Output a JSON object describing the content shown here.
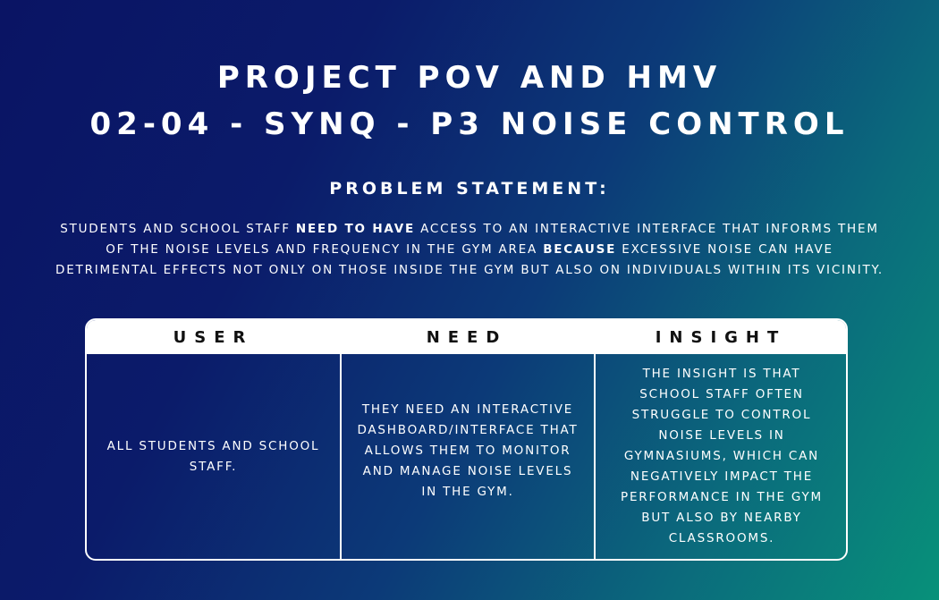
{
  "title_line1": "PROJECT POV AND HMV",
  "title_line2": "02-04 - SYNQ - P3 NOISE CONTROL",
  "problem_heading": "PROBLEM STATEMENT:",
  "statement": {
    "part1": "Students and school staff ",
    "bold1": "need to have",
    "part2": " access to an interactive interface that informs them of the noise levels and frequency in the gym area ",
    "bold2": "because",
    "part3": " excessive noise can have detrimental effects not only on those inside the gym but also on individuals within its vicinity."
  },
  "table": {
    "headers": {
      "user": "USER",
      "need": "NEED",
      "insight": "INSIGHT"
    },
    "user_text": "All students and school staff.",
    "need_text": "They need an interactive dashboard/interface that allows them to monitor and manage noise levels in the gym.",
    "insight_text": "The insight is that school staff often struggle to control noise levels in gymnasiums, which can negatively impact the performance in the gym but also by nearby classrooms."
  },
  "colors": {
    "gradient_start": "#0a1464",
    "gradient_end": "#08917a",
    "text": "#ffffff",
    "header_text": "#111111"
  }
}
